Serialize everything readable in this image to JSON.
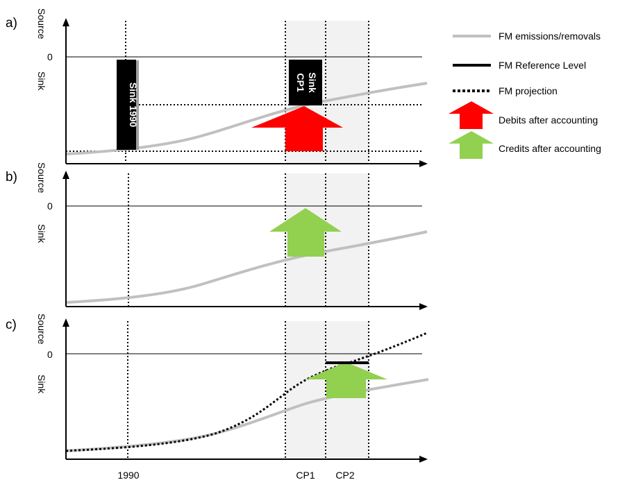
{
  "legend": {
    "emissions": "FM emissions/removals",
    "reference": "FM Reference Level",
    "projection": "FM projection",
    "debits": "Debits after accounting",
    "credits": "Credits after accounting"
  },
  "panels": [
    {
      "label": "a)",
      "source": "Source",
      "zero": "0",
      "sink": "Sink"
    },
    {
      "label": "b)",
      "source": "Source",
      "zero": "0",
      "sink": "Sink"
    },
    {
      "label": "c)",
      "source": "Source",
      "zero": "0",
      "sink": "Sink"
    }
  ],
  "bars": {
    "sink_1990": "Sink 1990",
    "sink_cp1_line1": "Sink",
    "sink_cp1_line2": "CP1"
  },
  "x_labels": {
    "y1990": "1990",
    "cp1": "CP1",
    "cp2": "CP2"
  },
  "colors": {
    "emissions": "#c0c0c0",
    "debits": "#ff0000",
    "credits": "#92d050",
    "period_shade": "#f2f2f2"
  }
}
